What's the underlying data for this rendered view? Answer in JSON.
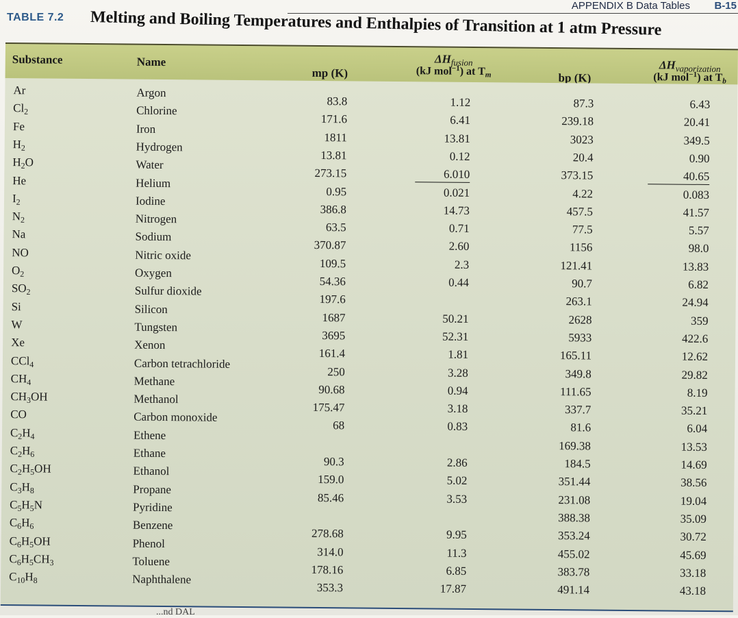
{
  "running_head": {
    "title": "APPENDIX B  Data Tables",
    "page": "B-15"
  },
  "table": {
    "label": "TABLE 7.2",
    "title": "Melting and Boiling Temperatures and Enthalpies of Transition at 1 atm Pressure",
    "headers": {
      "substance": "Substance",
      "name": "Name",
      "mp": "mp (K)",
      "dh_fus_top": "ΔH",
      "dh_fus_sub": "fusion",
      "dh_fus_unit_a": "(kJ mol",
      "dh_fus_unit_exp": "−1",
      "dh_fus_unit_b": ") at T",
      "dh_fus_unit_t": "m",
      "bp": "bp (K)",
      "dh_vap_top": "ΔH",
      "dh_vap_sub": "vaporization",
      "dh_vap_unit_a": "(kJ mol",
      "dh_vap_unit_exp": "−1",
      "dh_vap_unit_b": ") at T",
      "dh_vap_unit_t": "b"
    },
    "substances": [
      {
        "f": [
          [
            "Ar",
            ""
          ]
        ]
      },
      {
        "f": [
          [
            "Cl",
            "2"
          ]
        ]
      },
      {
        "f": [
          [
            "Fe",
            ""
          ]
        ]
      },
      {
        "f": [
          [
            "H",
            "2"
          ]
        ]
      },
      {
        "f": [
          [
            "H",
            "2"
          ],
          [
            "O",
            ""
          ]
        ]
      },
      {
        "f": [
          [
            "He",
            ""
          ]
        ]
      },
      {
        "f": [
          [
            "I",
            "2"
          ]
        ]
      },
      {
        "f": [
          [
            "N",
            "2"
          ]
        ]
      },
      {
        "f": [
          [
            "Na",
            ""
          ]
        ]
      },
      {
        "f": [
          [
            "NO",
            ""
          ]
        ]
      },
      {
        "f": [
          [
            "O",
            "2"
          ]
        ]
      },
      {
        "f": [
          [
            "SO",
            "2"
          ]
        ]
      },
      {
        "f": [
          [
            "Si",
            ""
          ]
        ]
      },
      {
        "f": [
          [
            "W",
            ""
          ]
        ]
      },
      {
        "f": [
          [
            "Xe",
            ""
          ]
        ]
      },
      {
        "f": [
          [
            "CCl",
            "4"
          ]
        ]
      },
      {
        "f": [
          [
            "CH",
            "4"
          ]
        ]
      },
      {
        "f": [
          [
            "CH",
            "3"
          ],
          [
            "OH",
            ""
          ]
        ]
      },
      {
        "f": [
          [
            "CO",
            ""
          ]
        ]
      },
      {
        "f": [
          [
            "C",
            "2"
          ],
          [
            "H",
            "4"
          ]
        ]
      },
      {
        "f": [
          [
            "C",
            "2"
          ],
          [
            "H",
            "6"
          ]
        ]
      },
      {
        "f": [
          [
            "C",
            "2"
          ],
          [
            "H",
            "5"
          ],
          [
            "OH",
            ""
          ]
        ]
      },
      {
        "f": [
          [
            "C",
            "3"
          ],
          [
            "H",
            "8"
          ]
        ]
      },
      {
        "f": [
          [
            "C",
            "5"
          ],
          [
            "H",
            "5"
          ],
          [
            "N",
            ""
          ]
        ]
      },
      {
        "f": [
          [
            "C",
            "6"
          ],
          [
            "H",
            "6"
          ]
        ]
      },
      {
        "f": [
          [
            "C",
            "6"
          ],
          [
            "H",
            "5"
          ],
          [
            "OH",
            ""
          ]
        ]
      },
      {
        "f": [
          [
            "C",
            "6"
          ],
          [
            "H",
            "5"
          ],
          [
            "CH",
            "3"
          ]
        ]
      },
      {
        "f": [
          [
            "C",
            "10"
          ],
          [
            "H",
            "8"
          ]
        ]
      }
    ],
    "names": [
      "Argon",
      "Chlorine",
      "Iron",
      "Hydrogen",
      "Water",
      "Helium",
      "Iodine",
      "Nitrogen",
      "Sodium",
      "Nitric oxide",
      "Oxygen",
      "Sulfur dioxide",
      "Silicon",
      "Tungsten",
      "Xenon",
      "Carbon tetrachloride",
      "Methane",
      "Methanol",
      "Carbon monoxide",
      "Ethene",
      "Ethane",
      "Ethanol",
      "Propane",
      "Pyridine",
      "Benzene",
      "Phenol",
      "Toluene",
      "Naphthalene"
    ],
    "mp": [
      "83.8",
      "171.6",
      "1811",
      "13.81",
      "273.15",
      "0.95",
      "386.8",
      "63.5",
      "370.87",
      "109.5",
      "54.36",
      "197.6",
      "1687",
      "3695",
      "161.4",
      "250",
      "90.68",
      "175.47",
      "68",
      "",
      "90.3",
      "159.0",
      "85.46",
      "",
      "278.68",
      "314.0",
      "178.16",
      "353.3"
    ],
    "dh_fusion": [
      "1.12",
      "6.41",
      "13.81",
      "0.12",
      "6.010",
      "0.021",
      "14.73",
      "0.71",
      "2.60",
      "2.3",
      "0.44",
      "",
      "50.21",
      "52.31",
      "1.81",
      "3.28",
      "0.94",
      "3.18",
      "0.83",
      "",
      "2.86",
      "5.02",
      "3.53",
      "",
      "9.95",
      "11.3",
      "6.85",
      "17.87"
    ],
    "bp": [
      "87.3",
      "239.18",
      "3023",
      "20.4",
      "373.15",
      "4.22",
      "457.5",
      "77.5",
      "1156",
      "121.41",
      "90.7",
      "263.1",
      "2628",
      "5933",
      "165.11",
      "349.8",
      "111.65",
      "337.7",
      "81.6",
      "169.38",
      "184.5",
      "351.44",
      "231.08",
      "388.38",
      "353.24",
      "455.02",
      "383.78",
      "491.14"
    ],
    "dh_vap": [
      "6.43",
      "20.41",
      "349.5",
      "0.90",
      "40.65",
      "0.083",
      "41.57",
      "5.57",
      "98.0",
      "13.83",
      "6.82",
      "24.94",
      "359",
      "422.6",
      "12.62",
      "29.82",
      "8.19",
      "35.21",
      "6.04",
      "13.53",
      "14.69",
      "38.56",
      "19.04",
      "35.09",
      "30.72",
      "45.69",
      "33.18",
      "43.18"
    ]
  },
  "footer_fragment": "...nd DAL"
}
